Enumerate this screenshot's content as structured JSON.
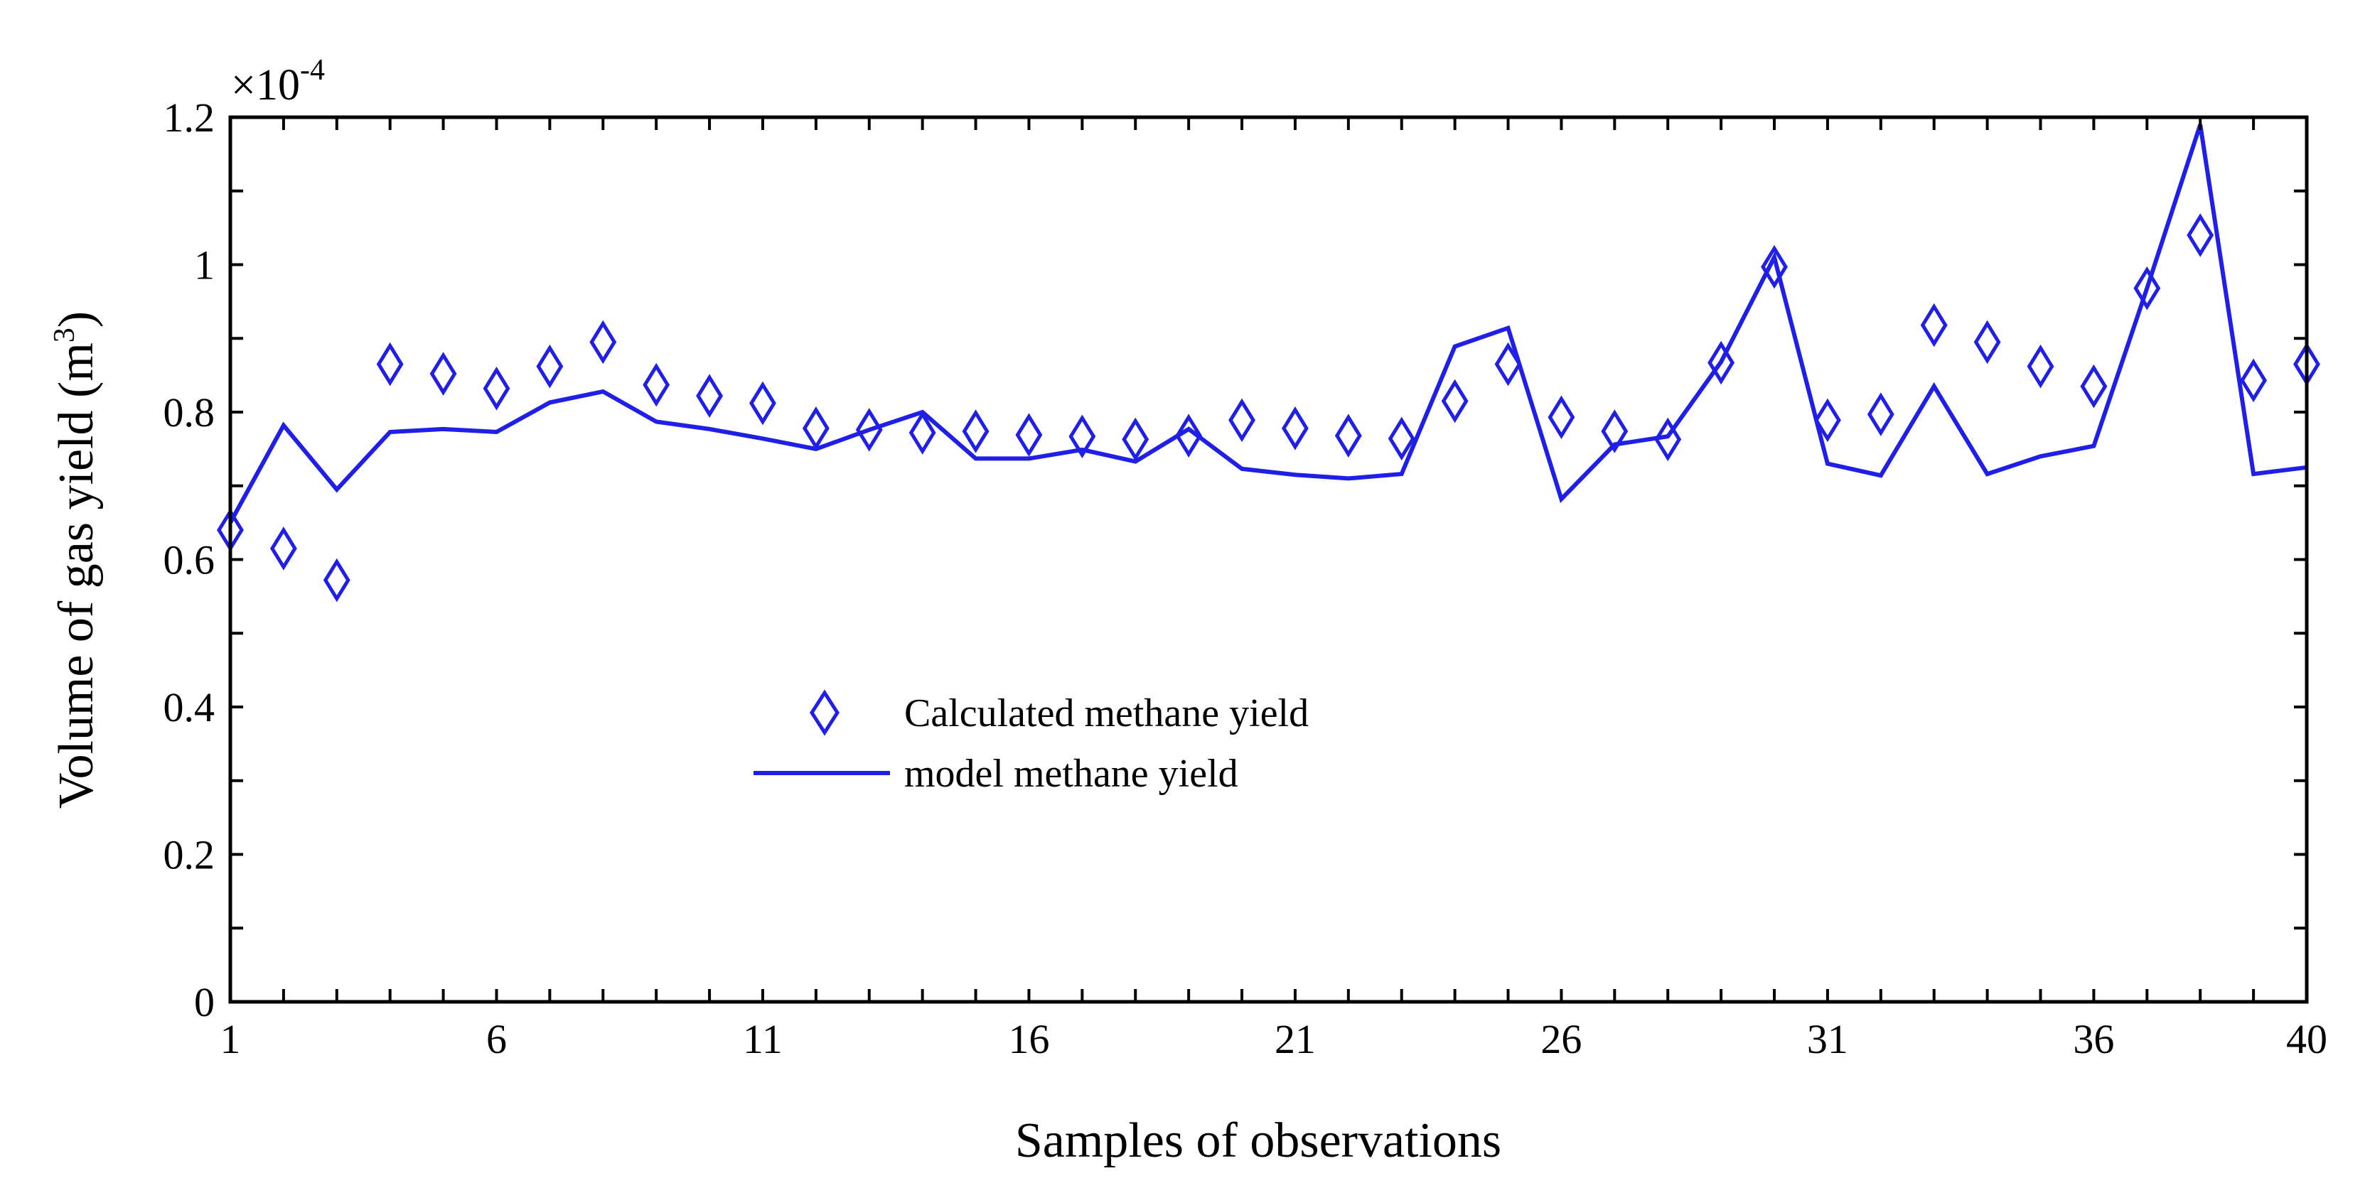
{
  "chart_data": {
    "type": "line",
    "title": "",
    "xlabel": "Samples of observations",
    "ylabel": "Volume of gas yield (m",
    "ylabel_superscript": "3",
    "ylabel_suffix": ")",
    "y_scale_prefix": "×10",
    "y_scale_exponent": "-4",
    "xlim": [
      1,
      40
    ],
    "ylim": [
      0,
      1.2
    ],
    "x_ticks": [
      1,
      6,
      11,
      16,
      21,
      26,
      31,
      36,
      40
    ],
    "y_ticks": [
      0,
      0.2,
      0.4,
      0.6,
      0.8,
      1,
      1.2
    ],
    "x_tick_labels": [
      "1",
      "6",
      "11",
      "16",
      "21",
      "26",
      "31",
      "36",
      "40"
    ],
    "y_tick_labels": [
      "0",
      "0.2",
      "0.4",
      "0.6",
      "0.8",
      "1",
      "1.2"
    ],
    "grid": false,
    "legend_position": "center-left",
    "x": [
      1,
      2,
      3,
      4,
      5,
      6,
      7,
      8,
      9,
      10,
      11,
      12,
      13,
      14,
      15,
      16,
      17,
      18,
      19,
      20,
      21,
      22,
      23,
      24,
      25,
      26,
      27,
      28,
      29,
      30,
      31,
      32,
      33,
      34,
      35,
      36,
      37,
      38,
      39,
      40
    ],
    "series": [
      {
        "name": "Calculated methane yield",
        "type": "scatter",
        "marker": "diamond",
        "color": "#1f1fe8",
        "values": [
          0.64,
          0.615,
          0.572,
          0.865,
          0.852,
          0.832,
          0.862,
          0.895,
          0.837,
          0.822,
          0.812,
          0.778,
          0.776,
          0.772,
          0.774,
          0.769,
          0.767,
          0.763,
          0.768,
          0.789,
          0.778,
          0.768,
          0.764,
          0.815,
          0.865,
          0.793,
          0.774,
          0.763,
          0.867,
          0.997,
          0.789,
          0.797,
          0.918,
          0.895,
          0.862,
          0.835,
          0.968,
          1.04,
          0.843,
          0.865
        ]
      },
      {
        "name": "model methane yield",
        "type": "line",
        "color": "#1f1fe8",
        "values": [
          0.65,
          0.782,
          0.695,
          0.773,
          0.777,
          0.773,
          0.813,
          0.828,
          0.787,
          0.777,
          0.764,
          0.75,
          0.776,
          0.8,
          0.737,
          0.737,
          0.749,
          0.733,
          0.777,
          0.723,
          0.715,
          0.71,
          0.716,
          0.889,
          0.914,
          0.682,
          0.756,
          0.767,
          0.868,
          1.01,
          0.73,
          0.714,
          0.835,
          0.716,
          0.74,
          0.754,
          0.968,
          1.19,
          0.716,
          0.725
        ]
      }
    ]
  },
  "colors": {
    "axis": "#000000",
    "series": "#1f1fe8",
    "background": "#ffffff"
  }
}
